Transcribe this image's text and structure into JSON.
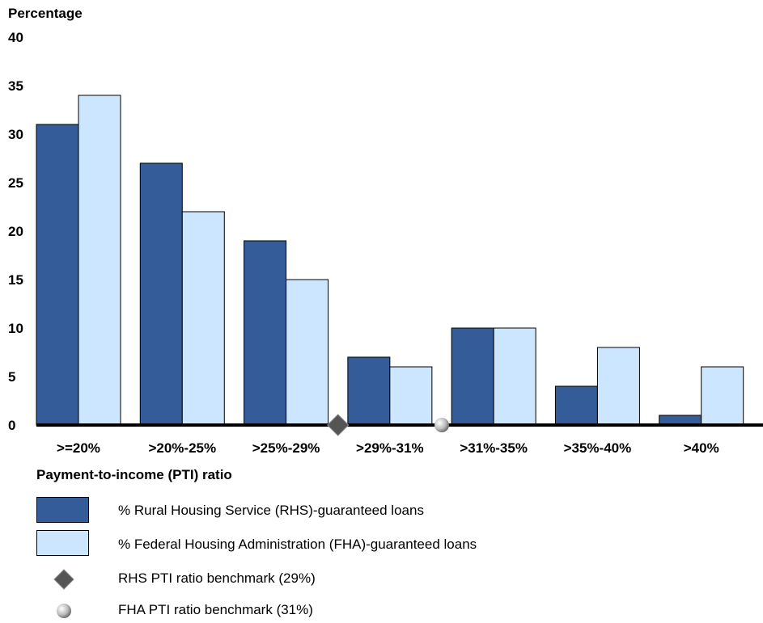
{
  "chart_data": {
    "type": "bar",
    "ylabel": "Percentage",
    "xlabel": "Payment-to-income (PTI) ratio",
    "ylim": [
      0,
      40
    ],
    "yticks": [
      "0",
      "5",
      "10",
      "15",
      "20",
      "25",
      "30",
      "35",
      "40"
    ],
    "categories": [
      ">=20%",
      ">20%-25%",
      ">25%-29%",
      ">29%-31%",
      ">31%-35%",
      ">35%-40%",
      ">40%"
    ],
    "series": [
      {
        "name": "% Rural Housing Service (RHS)-guaranteed loans",
        "values": [
          31,
          27,
          19,
          7,
          10,
          4,
          1
        ],
        "color": "#335c99"
      },
      {
        "name": "% Federal Housing Administration (FHA)-guaranteed loans",
        "values": [
          34,
          22,
          15,
          6,
          10,
          8,
          6
        ],
        "color": "#cce6ff"
      }
    ],
    "benchmarks": [
      {
        "name": "RHS PTI ratio benchmark (29%)",
        "value": 29,
        "marker": "diamond",
        "color": "#555555"
      },
      {
        "name": "FHA PTI ratio benchmark (31%)",
        "value": 31,
        "marker": "circle",
        "color": "#bbbbbb"
      }
    ],
    "grid": false,
    "legend_position": "bottom-left"
  }
}
